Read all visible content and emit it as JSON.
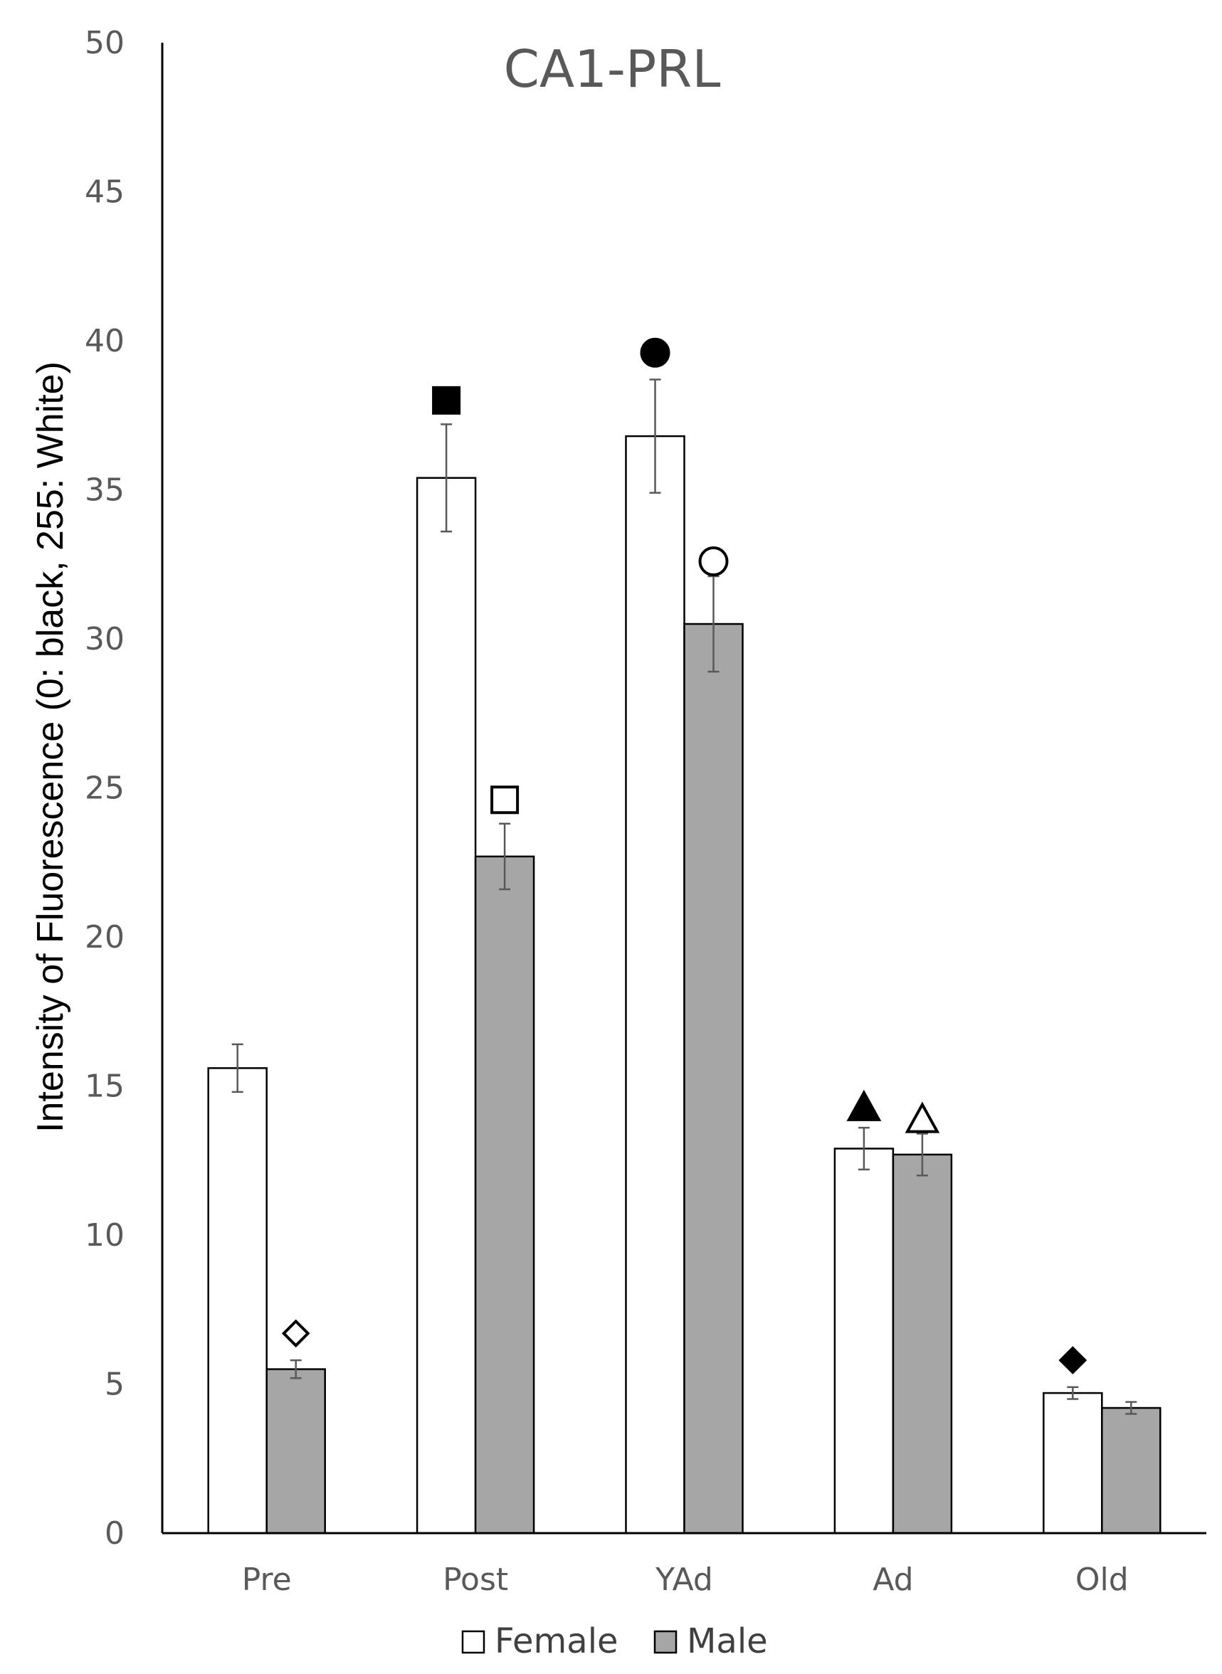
{
  "chart_data": {
    "type": "bar",
    "title": "CA1-PRL",
    "xlabel": "",
    "ylabel": "Intensity of Fluorescence (0: black, 255: White)",
    "categories": [
      "Pre",
      "Post",
      "YAd",
      "Ad",
      "Old"
    ],
    "ylim": [
      0,
      50
    ],
    "yticks": [
      0,
      5,
      10,
      15,
      20,
      25,
      30,
      35,
      40,
      45,
      50
    ],
    "grid": false,
    "legend_position": "bottom",
    "series": [
      {
        "name": "Female",
        "color": "#ffffff",
        "values": [
          15.6,
          35.4,
          36.8,
          12.9,
          4.7
        ],
        "errors": [
          0.8,
          1.8,
          1.9,
          0.7,
          0.2
        ]
      },
      {
        "name": "Male",
        "color": "#a6a6a6",
        "values": [
          5.5,
          22.7,
          30.5,
          12.7,
          4.2
        ],
        "errors": [
          0.3,
          1.1,
          1.6,
          0.7,
          0.2
        ]
      }
    ],
    "annotations": [
      {
        "category": "Pre",
        "series": "Male",
        "marker": "diamond-open",
        "y": 6.7
      },
      {
        "category": "Post",
        "series": "Female",
        "marker": "square-filled",
        "y": 38.0
      },
      {
        "category": "Post",
        "series": "Male",
        "marker": "square-open",
        "y": 24.6
      },
      {
        "category": "YAd",
        "series": "Female",
        "marker": "circle-filled",
        "y": 39.6
      },
      {
        "category": "YAd",
        "series": "Male",
        "marker": "circle-open",
        "y": 32.6
      },
      {
        "category": "Ad",
        "series": "Female",
        "marker": "triangle-filled",
        "y": 14.3
      },
      {
        "category": "Ad",
        "series": "Male",
        "marker": "triangle-open",
        "y": 13.9
      },
      {
        "category": "Old",
        "series": "Female",
        "marker": "diamond-filled",
        "y": 5.8
      }
    ]
  }
}
